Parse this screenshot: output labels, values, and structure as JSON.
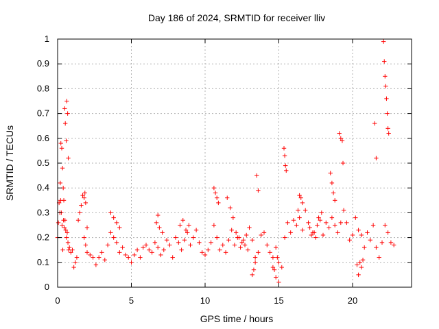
{
  "chart_data": {
    "type": "scatter",
    "title": "Day 186 of 2024, SRMTID for receiver lliv",
    "xlabel": "GPS time / hours",
    "ylabel": "SRMTID / TECUs",
    "xlim": [
      0,
      24
    ],
    "ylim": [
      0,
      1
    ],
    "x_ticks": [
      0,
      5,
      10,
      15,
      20
    ],
    "x_tick_labels": [
      "0",
      "5",
      "10",
      "15",
      "20"
    ],
    "y_ticks": [
      0,
      0.1,
      0.2,
      0.3,
      0.4,
      0.5,
      0.6,
      0.7,
      0.8,
      0.9,
      1
    ],
    "y_tick_labels": [
      "0",
      "0.1",
      "0.2",
      "0.3",
      "0.4",
      "0.5",
      "0.6",
      "0.7",
      "0.8",
      "0.9",
      "1"
    ],
    "grid": true,
    "marker": "+",
    "series": [
      {
        "name": "SRMTID",
        "color": "#ff0000",
        "x": [
          0.0,
          0.05,
          0.1,
          0.15,
          0.2,
          0.25,
          0.3,
          0.35,
          0.4,
          0.45,
          0.5,
          0.55,
          0.6,
          0.65,
          0.7,
          0.75,
          0.8,
          0.9,
          1.0,
          1.1,
          1.2,
          1.3,
          1.4,
          1.5,
          1.6,
          1.7,
          1.8,
          1.9,
          2.0,
          2.2,
          2.4,
          2.6,
          2.8,
          3.0,
          3.2,
          3.4,
          3.6,
          3.8,
          4.0,
          4.2,
          4.4,
          4.6,
          4.8,
          5.0,
          5.2,
          5.4,
          5.6,
          5.8,
          6.0,
          6.2,
          6.4,
          6.6,
          6.8,
          7.0,
          7.2,
          7.4,
          7.6,
          7.8,
          8.0,
          8.2,
          8.4,
          8.6,
          8.8,
          9.0,
          9.2,
          9.4,
          9.6,
          9.8,
          10.0,
          10.2,
          10.4,
          10.6,
          10.8,
          11.0,
          11.2,
          11.4,
          11.6,
          11.8,
          12.0,
          12.2,
          12.4,
          12.6,
          12.8,
          13.0,
          13.2,
          13.4,
          13.6,
          13.8,
          14.0,
          14.2,
          14.4,
          14.6,
          14.8,
          15.0,
          15.2,
          15.4,
          15.6,
          15.8,
          16.0,
          16.2,
          16.4,
          16.6,
          16.8,
          17.0,
          17.2,
          17.4,
          17.6,
          17.8,
          18.0,
          18.2,
          18.4,
          18.6,
          18.8,
          19.0,
          19.2,
          19.4,
          19.6,
          19.8,
          20.0,
          20.2,
          20.4,
          20.6,
          20.8,
          21.0,
          21.2,
          21.4,
          21.6,
          21.8,
          22.0,
          22.2,
          22.4,
          22.6,
          22.8,
          0.18,
          0.22,
          0.28,
          0.33,
          0.38,
          0.42,
          0.48,
          0.52,
          0.58,
          0.62,
          0.68,
          0.72,
          15.35,
          15.4,
          15.45,
          15.5,
          19.1,
          19.2,
          19.3,
          19.35,
          21.5,
          21.6,
          22.1,
          22.15,
          22.2,
          22.25,
          22.3,
          22.35,
          22.4,
          22.45,
          13.2,
          13.3,
          13.4,
          13.5,
          13.6,
          14.6,
          14.7,
          14.8,
          14.9,
          15.0,
          1.8,
          1.85,
          1.9,
          2.0,
          10.6,
          10.7,
          10.8,
          10.9,
          16.3,
          16.4,
          16.5,
          16.6,
          18.5,
          18.6,
          18.7,
          18.8,
          20.3,
          20.4,
          20.5,
          20.6,
          20.7,
          3.6,
          3.8,
          4.0,
          4.2,
          6.7,
          6.8,
          6.9,
          7.1,
          8.3,
          8.5,
          8.7,
          8.9,
          11.5,
          11.7,
          11.9,
          12.1,
          12.3,
          12.5,
          12.7,
          12.9,
          17.1,
          17.3,
          17.5,
          17.7,
          17.9
        ],
        "y": [
          0.2,
          0.26,
          0.34,
          0.3,
          0.35,
          0.3,
          0.25,
          0.15,
          0.27,
          0.24,
          0.27,
          0.23,
          0.2,
          0.22,
          0.18,
          0.15,
          0.16,
          0.14,
          0.15,
          0.08,
          0.1,
          0.12,
          0.27,
          0.3,
          0.33,
          0.37,
          0.2,
          0.17,
          0.14,
          0.13,
          0.12,
          0.09,
          0.12,
          0.14,
          0.11,
          0.17,
          0.22,
          0.2,
          0.18,
          0.14,
          0.16,
          0.13,
          0.12,
          0.1,
          0.13,
          0.15,
          0.12,
          0.16,
          0.17,
          0.15,
          0.14,
          0.18,
          0.16,
          0.13,
          0.15,
          0.19,
          0.17,
          0.12,
          0.2,
          0.18,
          0.15,
          0.19,
          0.22,
          0.17,
          0.2,
          0.23,
          0.18,
          0.14,
          0.13,
          0.15,
          0.18,
          0.25,
          0.2,
          0.15,
          0.17,
          0.14,
          0.19,
          0.23,
          0.17,
          0.2,
          0.16,
          0.19,
          0.21,
          0.24,
          0.19,
          0.1,
          0.14,
          0.21,
          0.22,
          0.17,
          0.14,
          0.12,
          0.16,
          0.1,
          0.08,
          0.2,
          0.26,
          0.22,
          0.27,
          0.25,
          0.28,
          0.23,
          0.31,
          0.26,
          0.21,
          0.22,
          0.25,
          0.27,
          0.21,
          0.26,
          0.24,
          0.28,
          0.25,
          0.22,
          0.26,
          0.31,
          0.26,
          0.19,
          0.21,
          0.28,
          0.23,
          0.21,
          0.16,
          0.22,
          0.19,
          0.25,
          0.16,
          0.12,
          0.18,
          0.25,
          0.22,
          0.18,
          0.17,
          0.42,
          0.58,
          0.56,
          0.48,
          0.4,
          0.35,
          0.72,
          0.66,
          0.59,
          0.75,
          0.7,
          0.52,
          0.56,
          0.53,
          0.49,
          0.47,
          0.62,
          0.6,
          0.59,
          0.5,
          0.66,
          0.52,
          0.99,
          0.91,
          0.85,
          0.81,
          0.76,
          0.7,
          0.64,
          0.62,
          0.05,
          0.07,
          0.12,
          0.45,
          0.39,
          0.08,
          0.07,
          0.04,
          0.12,
          0.02,
          0.36,
          0.38,
          0.34,
          0.24,
          0.4,
          0.38,
          0.36,
          0.34,
          0.31,
          0.37,
          0.36,
          0.34,
          0.46,
          0.42,
          0.38,
          0.35,
          0.09,
          0.05,
          0.1,
          0.08,
          0.11,
          0.3,
          0.28,
          0.26,
          0.24,
          0.26,
          0.29,
          0.24,
          0.22,
          0.25,
          0.27,
          0.23,
          0.25,
          0.36,
          0.32,
          0.28,
          0.22,
          0.2,
          0.18,
          0.17,
          0.15,
          0.24,
          0.22,
          0.2,
          0.28,
          0.3
        ]
      }
    ]
  }
}
